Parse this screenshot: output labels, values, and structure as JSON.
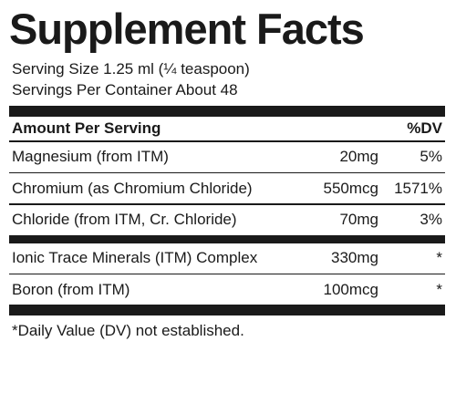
{
  "panel": {
    "title": "Supplement Facts",
    "serving_size": "Serving Size 1.25 ml (¼ teaspoon)",
    "servings_per_container": "Servings Per Container About 48",
    "header": {
      "amount": "Amount Per Serving",
      "dv": "%DV"
    },
    "group1": [
      {
        "name": "Magnesium (from ITM)",
        "amount": "20mg",
        "dv": "5%"
      },
      {
        "name": "Chromium (as Chromium Chloride)",
        "amount": "550mcg",
        "dv": "1571%"
      },
      {
        "name": "Chloride (from ITM, Cr. Chloride)",
        "amount": "70mg",
        "dv": "3%"
      }
    ],
    "group2": [
      {
        "name": "Ionic Trace Minerals (ITM) Complex",
        "amount": "330mg",
        "dv": "*"
      },
      {
        "name": "Boron (from ITM)",
        "amount": "100mcg",
        "dv": "*"
      }
    ],
    "footnote": "*Daily Value (DV) not established."
  }
}
